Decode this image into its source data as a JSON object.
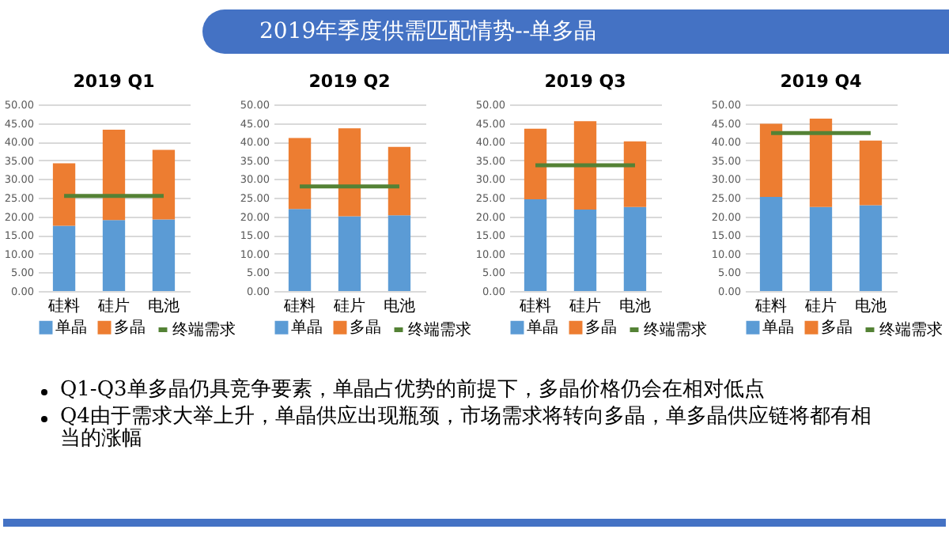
{
  "chart_data": [
    {
      "type": "other",
      "title": "2019年季度供需匹配情势--单多晶",
      "annotations": [
        "Q1-Q3单多晶仍具竞争要素，单晶占优势的前提下，多晶价格仍会在相对低点",
        "Q4由于需求大举上升，单晶供应出现瓶颈，市场需求将转向多晶，单多晶供应链将都有相当的涨幅"
      ]
    },
    {
      "type": "bar",
      "title": "2019 Q1",
      "stacked": true,
      "categories": [
        "硅料",
        "硅片",
        "电池"
      ],
      "series": [
        {
          "name": "单晶",
          "color": "#5b9bd5",
          "values": [
            17.5,
            19.0,
            19.2
          ]
        },
        {
          "name": "多晶",
          "color": "#ed7d31",
          "values": [
            16.7,
            24.2,
            18.6
          ]
        },
        {
          "name": "终端需求",
          "color": "#548235",
          "type": "line",
          "values": [
            25.5,
            25.5,
            25.5
          ]
        }
      ],
      "ylim": [
        0,
        50
      ],
      "yticks": [
        {
          "value": 0,
          "label": "0.00"
        },
        {
          "value": 5,
          "label": "5.00"
        },
        {
          "value": 10,
          "label": "10.00"
        },
        {
          "value": 15,
          "label": "15.00"
        },
        {
          "value": 20,
          "label": "20.00"
        },
        {
          "value": 25,
          "label": "25.00"
        },
        {
          "value": 30,
          "label": "30.00"
        },
        {
          "value": 35,
          "label": "35.00"
        },
        {
          "value": 40,
          "label": "40.00"
        },
        {
          "value": 45,
          "label": "45.00"
        },
        {
          "value": 50,
          "label": "50.00"
        }
      ],
      "grid": "y",
      "legend": "bottom"
    },
    {
      "type": "bar",
      "title": "2019 Q2",
      "stacked": true,
      "categories": [
        "硅料",
        "硅片",
        "电池"
      ],
      "series": [
        {
          "name": "单晶",
          "color": "#5b9bd5",
          "values": [
            22.0,
            20.0,
            20.3
          ]
        },
        {
          "name": "多晶",
          "color": "#ed7d31",
          "values": [
            19.0,
            23.6,
            18.3
          ]
        },
        {
          "name": "终端需求",
          "color": "#548235",
          "type": "line",
          "values": [
            28.0,
            28.0,
            28.0
          ]
        }
      ],
      "ylim": [
        0,
        50
      ],
      "yticks": [
        {
          "value": 0,
          "label": "0.00"
        },
        {
          "value": 5,
          "label": "5.00"
        },
        {
          "value": 10,
          "label": "10.00"
        },
        {
          "value": 15,
          "label": "15.00"
        },
        {
          "value": 20,
          "label": "20.00"
        },
        {
          "value": 25,
          "label": "25.00"
        },
        {
          "value": 30,
          "label": "30.00"
        },
        {
          "value": 35,
          "label": "35.00"
        },
        {
          "value": 40,
          "label": "40.00"
        },
        {
          "value": 45,
          "label": "45.00"
        },
        {
          "value": 50,
          "label": "50.00"
        }
      ],
      "grid": "y",
      "legend": "bottom"
    },
    {
      "type": "bar",
      "title": "2019 Q3",
      "stacked": true,
      "categories": [
        "硅料",
        "硅片",
        "电池"
      ],
      "series": [
        {
          "name": "单晶",
          "color": "#5b9bd5",
          "values": [
            24.6,
            21.8,
            22.5
          ]
        },
        {
          "name": "多晶",
          "color": "#ed7d31",
          "values": [
            18.9,
            23.7,
            17.6
          ]
        },
        {
          "name": "终端需求",
          "color": "#548235",
          "type": "line",
          "values": [
            33.7,
            33.7,
            33.7
          ]
        }
      ],
      "ylim": [
        0,
        50
      ],
      "yticks": [
        {
          "value": 0,
          "label": "0.00"
        },
        {
          "value": 5,
          "label": "5.00"
        },
        {
          "value": 10,
          "label": "10.00"
        },
        {
          "value": 15,
          "label": "15.00"
        },
        {
          "value": 20,
          "label": "20.00"
        },
        {
          "value": 25,
          "label": "25.00"
        },
        {
          "value": 30,
          "label": "30.00"
        },
        {
          "value": 35,
          "label": "35.00"
        },
        {
          "value": 40,
          "label": "40.00"
        },
        {
          "value": 45,
          "label": "45.00"
        },
        {
          "value": 50,
          "label": "50.00"
        }
      ],
      "grid": "y",
      "legend": "bottom"
    },
    {
      "type": "bar",
      "title": "2019 Q4",
      "stacked": true,
      "categories": [
        "硅料",
        "硅片",
        "电池"
      ],
      "series": [
        {
          "name": "单晶",
          "color": "#5b9bd5",
          "values": [
            25.2,
            22.5,
            23.0
          ]
        },
        {
          "name": "多晶",
          "color": "#ed7d31",
          "values": [
            19.6,
            23.7,
            17.3
          ]
        },
        {
          "name": "终端需求",
          "color": "#548235",
          "type": "line",
          "values": [
            42.3,
            42.3,
            42.3
          ]
        }
      ],
      "ylim": [
        0,
        50
      ],
      "yticks": [
        {
          "value": 0,
          "label": "0.00"
        },
        {
          "value": 5,
          "label": "5.00"
        },
        {
          "value": 10,
          "label": "10.00"
        },
        {
          "value": 15,
          "label": "15.00"
        },
        {
          "value": 20,
          "label": "20.00"
        },
        {
          "value": 25,
          "label": "25.00"
        },
        {
          "value": 30,
          "label": "30.00"
        },
        {
          "value": 35,
          "label": "35.00"
        },
        {
          "value": 40,
          "label": "40.00"
        },
        {
          "value": 45,
          "label": "45.00"
        },
        {
          "value": 50,
          "label": "50.00"
        }
      ],
      "grid": "y",
      "legend": "bottom"
    }
  ]
}
